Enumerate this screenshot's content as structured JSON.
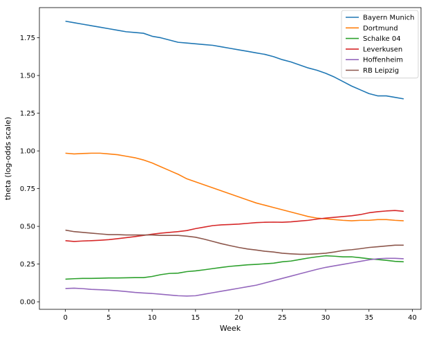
{
  "chart_data": {
    "type": "line",
    "title": "",
    "xlabel": "Week",
    "ylabel": "theta (log-odds scale)",
    "xlim": [
      -3,
      41
    ],
    "ylim": [
      -0.05,
      1.95
    ],
    "x_ticks": [
      0,
      5,
      10,
      15,
      20,
      25,
      30,
      35,
      40
    ],
    "x_tick_labels": [
      "0",
      "5",
      "10",
      "15",
      "20",
      "25",
      "30",
      "35",
      "40"
    ],
    "y_ticks": [
      0.0,
      0.25,
      0.5,
      0.75,
      1.0,
      1.25,
      1.5,
      1.75
    ],
    "y_tick_labels": [
      "0.00",
      "0.25",
      "0.50",
      "0.75",
      "1.00",
      "1.25",
      "1.50",
      "1.75"
    ],
    "grid": false,
    "legend_position": "top-right",
    "x": [
      0,
      1,
      2,
      3,
      4,
      5,
      6,
      7,
      8,
      9,
      10,
      11,
      12,
      13,
      14,
      15,
      16,
      17,
      18,
      19,
      20,
      21,
      22,
      23,
      24,
      25,
      26,
      27,
      28,
      29,
      30,
      31,
      32,
      33,
      34,
      35,
      36,
      37,
      38,
      39
    ],
    "series": [
      {
        "name": "Bayern Munich",
        "color": "#1f77b4",
        "values": [
          1.86,
          1.85,
          1.84,
          1.83,
          1.82,
          1.81,
          1.8,
          1.79,
          1.785,
          1.78,
          1.76,
          1.75,
          1.735,
          1.72,
          1.715,
          1.71,
          1.705,
          1.7,
          1.69,
          1.68,
          1.67,
          1.66,
          1.65,
          1.64,
          1.625,
          1.605,
          1.59,
          1.57,
          1.55,
          1.535,
          1.515,
          1.49,
          1.46,
          1.43,
          1.405,
          1.38,
          1.365,
          1.365,
          1.355,
          1.345
        ]
      },
      {
        "name": "Dortmund",
        "color": "#ff7f0e",
        "values": [
          0.985,
          0.98,
          0.983,
          0.985,
          0.985,
          0.98,
          0.975,
          0.965,
          0.955,
          0.94,
          0.92,
          0.895,
          0.87,
          0.845,
          0.815,
          0.795,
          0.775,
          0.755,
          0.735,
          0.715,
          0.695,
          0.675,
          0.655,
          0.64,
          0.625,
          0.61,
          0.595,
          0.58,
          0.565,
          0.555,
          0.55,
          0.545,
          0.54,
          0.537,
          0.54,
          0.54,
          0.545,
          0.545,
          0.54,
          0.537
        ]
      },
      {
        "name": "Schalke 04",
        "color": "#2ca02c",
        "values": [
          0.15,
          0.153,
          0.155,
          0.155,
          0.156,
          0.158,
          0.158,
          0.159,
          0.16,
          0.16,
          0.168,
          0.18,
          0.188,
          0.19,
          0.2,
          0.205,
          0.212,
          0.22,
          0.228,
          0.235,
          0.24,
          0.245,
          0.248,
          0.252,
          0.256,
          0.265,
          0.27,
          0.28,
          0.29,
          0.298,
          0.305,
          0.302,
          0.298,
          0.298,
          0.292,
          0.285,
          0.28,
          0.275,
          0.268,
          0.265
        ]
      },
      {
        "name": "Leverkusen",
        "color": "#d62728",
        "values": [
          0.405,
          0.4,
          0.403,
          0.405,
          0.408,
          0.412,
          0.418,
          0.425,
          0.432,
          0.44,
          0.448,
          0.455,
          0.46,
          0.465,
          0.472,
          0.485,
          0.495,
          0.505,
          0.51,
          0.512,
          0.515,
          0.52,
          0.525,
          0.527,
          0.528,
          0.527,
          0.53,
          0.535,
          0.54,
          0.548,
          0.555,
          0.56,
          0.565,
          0.57,
          0.578,
          0.59,
          0.597,
          0.602,
          0.605,
          0.6
        ]
      },
      {
        "name": "Hoffenheim",
        "color": "#9467bd",
        "values": [
          0.088,
          0.09,
          0.087,
          0.082,
          0.08,
          0.077,
          0.073,
          0.068,
          0.062,
          0.058,
          0.055,
          0.05,
          0.045,
          0.04,
          0.038,
          0.04,
          0.05,
          0.06,
          0.07,
          0.08,
          0.09,
          0.1,
          0.11,
          0.125,
          0.14,
          0.155,
          0.17,
          0.185,
          0.2,
          0.215,
          0.228,
          0.238,
          0.248,
          0.258,
          0.268,
          0.278,
          0.285,
          0.288,
          0.288,
          0.285
        ]
      },
      {
        "name": "RB Leipzig",
        "color": "#8c564b",
        "values": [
          0.475,
          0.465,
          0.46,
          0.455,
          0.45,
          0.445,
          0.445,
          0.443,
          0.443,
          0.443,
          0.443,
          0.44,
          0.44,
          0.44,
          0.435,
          0.428,
          0.415,
          0.4,
          0.385,
          0.372,
          0.36,
          0.35,
          0.343,
          0.335,
          0.33,
          0.322,
          0.318,
          0.315,
          0.315,
          0.318,
          0.322,
          0.33,
          0.34,
          0.345,
          0.352,
          0.36,
          0.365,
          0.37,
          0.375,
          0.375
        ]
      }
    ]
  }
}
